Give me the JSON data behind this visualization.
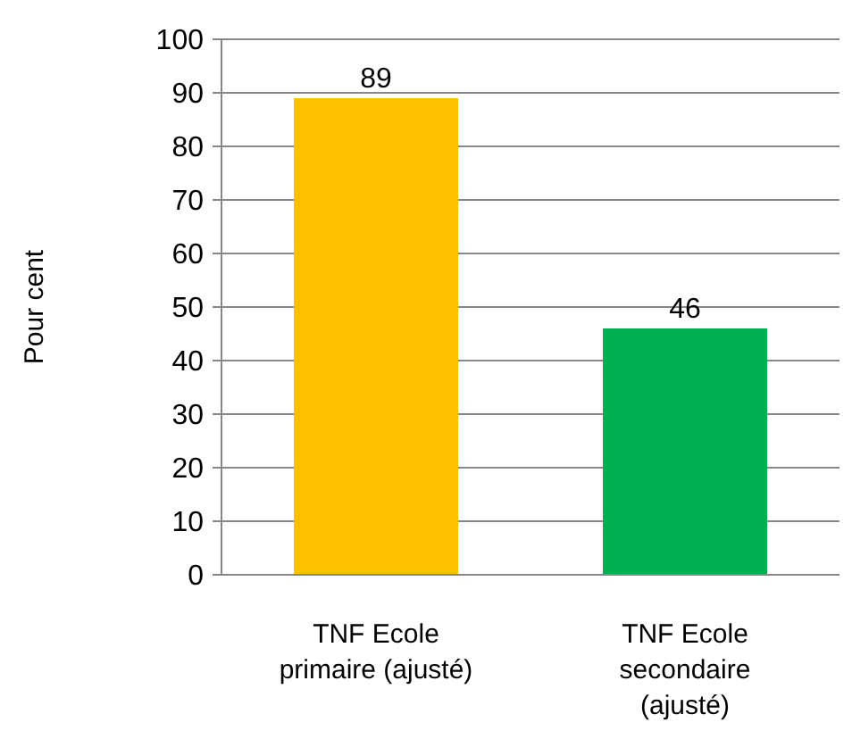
{
  "chart_data": {
    "type": "bar",
    "ylabel": "Pour cent",
    "categories": [
      "TNF Ecole primaire (ajusté)",
      "TNF Ecole secondaire (ajusté)"
    ],
    "values": [
      89,
      46
    ],
    "colors": [
      "#ffc000",
      "#00b050"
    ],
    "ylim": [
      0,
      100
    ],
    "yticks": [
      0,
      10,
      20,
      30,
      40,
      50,
      60,
      70,
      80,
      90,
      100
    ],
    "grid": "y",
    "data_labels": true
  }
}
